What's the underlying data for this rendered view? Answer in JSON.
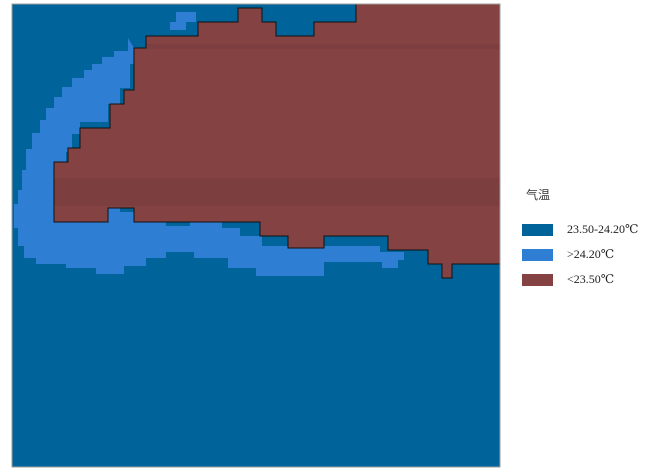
{
  "legend": {
    "title": "气温",
    "items": [
      {
        "label": "23.50-24.20℃",
        "color": "#00649a"
      },
      {
        "label": ">24.20℃",
        "color": "#2e7ed4"
      },
      {
        "label": "<23.50℃",
        "color": "#844242"
      }
    ]
  },
  "colors": {
    "background": "#ffffff",
    "frame": "#9e9e9e",
    "boundary": "#111111"
  }
}
